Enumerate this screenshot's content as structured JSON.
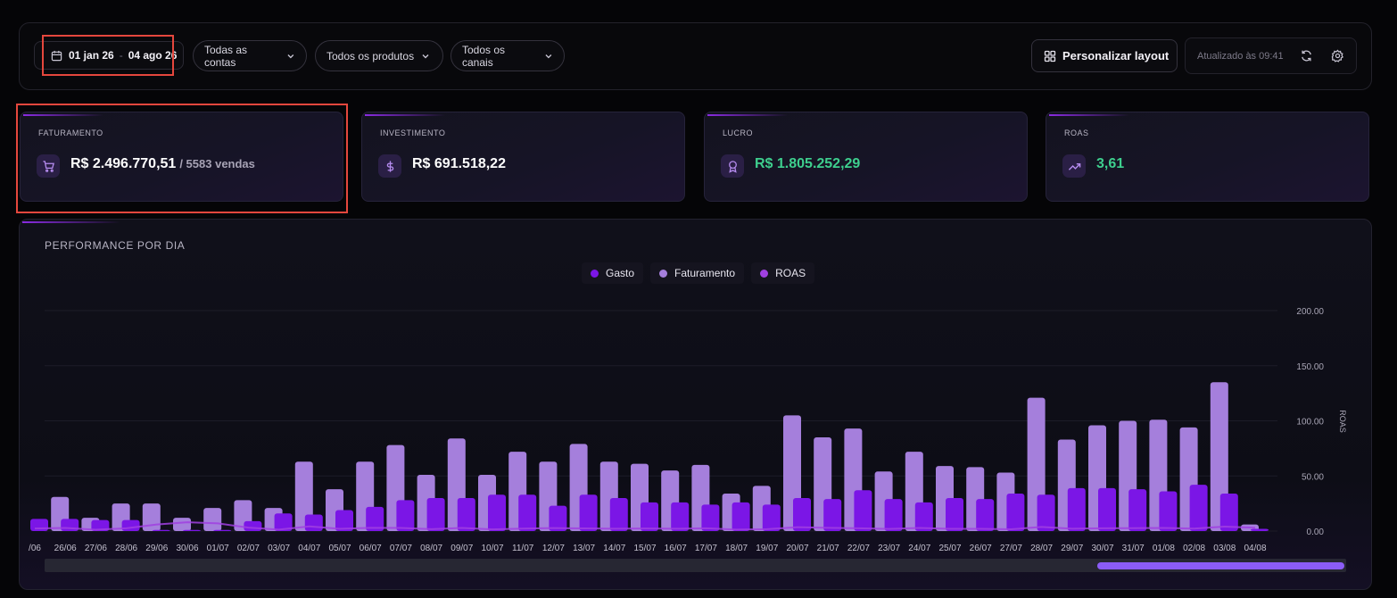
{
  "filters": {
    "date_start": "01 jan 26",
    "date_sep": "-",
    "date_end": "04 ago 26",
    "accounts": "Todas as contas",
    "products": "Todos os produtos",
    "channels": "Todos os canais",
    "layout_label": "Personalizar layout",
    "updated_label": "Atualizado às 09:41"
  },
  "kpis": [
    {
      "label": "FATURAMENTO",
      "value": "R$ 2.496.770,51",
      "sub": "/ 5583 vendas",
      "icon": "cart-icon"
    },
    {
      "label": "INVESTIMENTO",
      "value": "R$ 691.518,22",
      "icon": "dollar-icon"
    },
    {
      "label": "LUCRO",
      "value": "R$ 1.805.252,29",
      "icon": "award-icon",
      "color": "#3ecf8e"
    },
    {
      "label": "ROAS",
      "value": "3,61",
      "icon": "trending-up-icon",
      "color": "#3ecf8e"
    }
  ],
  "colors": {
    "gasto": "#7b16e6",
    "faturamento": "#a57fdc",
    "roas": "#a040e0",
    "accent": "#8a2be2",
    "highlight": "#e5473d"
  },
  "chart": {
    "title": "PERFORMANCE POR DIA"
  },
  "chart_data": {
    "type": "bar",
    "categories": [
      "/06",
      "26/06",
      "27/06",
      "28/06",
      "29/06",
      "30/06",
      "01/07",
      "02/07",
      "03/07",
      "04/07",
      "05/07",
      "06/07",
      "07/07",
      "08/07",
      "09/07",
      "10/07",
      "11/07",
      "12/07",
      "13/07",
      "14/07",
      "15/07",
      "16/07",
      "17/07",
      "18/07",
      "19/07",
      "20/07",
      "21/07",
      "22/07",
      "23/07",
      "24/07",
      "25/07",
      "26/07",
      "27/07",
      "28/07",
      "29/07",
      "30/07",
      "31/07",
      "01/08",
      "02/08",
      "03/08",
      "04/08"
    ],
    "series": [
      {
        "name": "Gasto",
        "values": [
          11,
          11,
          10,
          10,
          1,
          1,
          1,
          9,
          16,
          15,
          19,
          22,
          28,
          30,
          30,
          33,
          33,
          23,
          33,
          30,
          26,
          26,
          24,
          26,
          24,
          30,
          29,
          37,
          29,
          26,
          30,
          29,
          34,
          33,
          39,
          39,
          38,
          36,
          42,
          34,
          2
        ]
      },
      {
        "name": "Faturamento",
        "values": [
          25,
          31,
          12,
          25,
          25,
          12,
          21,
          28,
          21,
          63,
          38,
          63,
          78,
          51,
          84,
          51,
          72,
          63,
          79,
          63,
          61,
          55,
          60,
          34,
          41,
          105,
          85,
          93,
          54,
          72,
          59,
          58,
          53,
          121,
          83,
          96,
          100,
          101,
          94,
          135,
          6
        ]
      },
      {
        "name": "ROAS",
        "values": [
          2.3,
          2.8,
          1.2,
          2.5,
          6,
          8,
          7,
          3.1,
          1.3,
          4.2,
          2,
          2.9,
          2.8,
          1.7,
          2.8,
          1.5,
          2.2,
          2.7,
          2.4,
          2.1,
          2.3,
          2.1,
          2.5,
          1.3,
          1.7,
          3.5,
          2.9,
          2.5,
          1.9,
          2.8,
          2,
          2,
          1.6,
          3.7,
          2.1,
          2.5,
          2.6,
          2.8,
          2.2,
          4,
          3
        ]
      }
    ],
    "ylabel": "ROAS",
    "ylim": [
      0,
      200
    ],
    "yticks": [
      "0.00",
      "50.00",
      "100.00",
      "150.00",
      "200.00"
    ],
    "grid": true,
    "legend": "top-center"
  }
}
